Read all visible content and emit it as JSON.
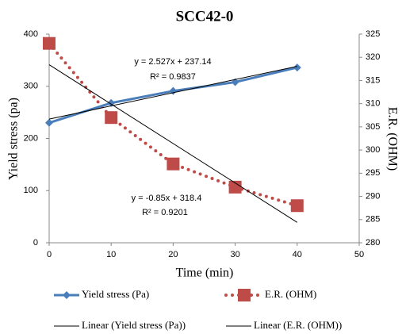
{
  "chart_data": {
    "type": "line",
    "title": "SCC42-0",
    "x_label": "Time (min)",
    "y_label": "Yield stress (pa)",
    "y2_label": "E.R. (OHM)",
    "xlim": [
      0,
      50
    ],
    "xticks": [
      0,
      10,
      20,
      30,
      40,
      50
    ],
    "ylim": [
      0,
      400
    ],
    "yticks": [
      0,
      100,
      200,
      300,
      400
    ],
    "y2lim": [
      280,
      325
    ],
    "y2ticks": [
      280,
      285,
      290,
      295,
      300,
      305,
      310,
      315,
      320,
      325
    ],
    "grid": false,
    "series": [
      {
        "name": "Yield stress (Pa)",
        "color": "#4a7ebb",
        "style": "solid",
        "marker": "diamond",
        "axis": "y",
        "x": [
          0,
          10,
          20,
          30,
          40
        ],
        "values": [
          230,
          268,
          291,
          308,
          336
        ]
      },
      {
        "name": "E.R. (OHM)",
        "color": "#be4b48",
        "style": "dotted",
        "marker": "square",
        "axis": "y2",
        "x": [
          0,
          10,
          20,
          30,
          40
        ],
        "values": [
          323,
          307,
          297,
          292,
          288
        ]
      },
      {
        "name": "Linear (Yield stress (Pa))",
        "color": "#000000",
        "style": "thin",
        "axis": "y",
        "x": [
          0,
          40
        ],
        "values": [
          237.14,
          338.22
        ]
      },
      {
        "name": "Linear (E.R. (OHM))",
        "color": "#000000",
        "style": "thin",
        "axis": "y2",
        "x": [
          0,
          40
        ],
        "values": [
          318.4,
          284.4
        ]
      }
    ],
    "annotations": [
      "y = 2.527x + 237.14",
      "R² = 0.9837",
      "y = -0.85x + 318.4",
      "R² = 0.9201"
    ]
  }
}
